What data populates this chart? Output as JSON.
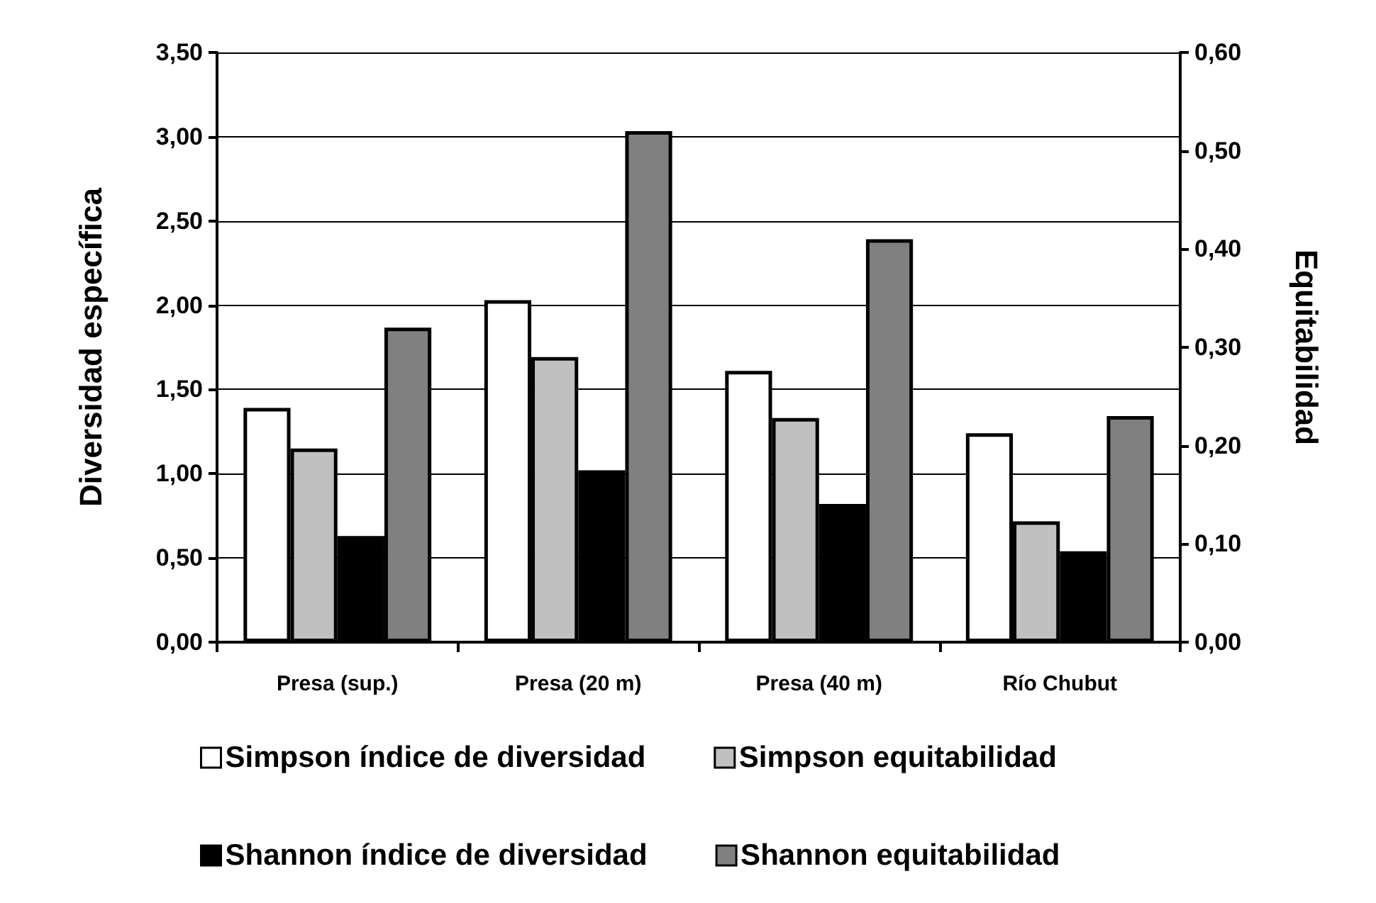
{
  "chart_data": {
    "type": "bar",
    "categories": [
      "Presa (sup.)",
      "Presa (20 m)",
      "Presa (40 m)",
      "Río Chubut"
    ],
    "ylabel": "Diversidad específica",
    "y2label": "Equitabilidad",
    "ylim": [
      0,
      3.5
    ],
    "yticks": [
      {
        "value": 0,
        "label": "0,00"
      },
      {
        "value": 0.5,
        "label": "0,50"
      },
      {
        "value": 1,
        "label": "1,00"
      },
      {
        "value": 1.5,
        "label": "1,50"
      },
      {
        "value": 2,
        "label": "2,00"
      },
      {
        "value": 2.5,
        "label": "2,50"
      },
      {
        "value": 3,
        "label": "3,00"
      },
      {
        "value": 3.5,
        "label": "3,50"
      }
    ],
    "y2lim": [
      0,
      0.6
    ],
    "y2ticks": [
      {
        "value": 0,
        "label": "0,00"
      },
      {
        "value": 0.1,
        "label": "0,10"
      },
      {
        "value": 0.2,
        "label": "0,20"
      },
      {
        "value": 0.3,
        "label": "0,30"
      },
      {
        "value": 0.4,
        "label": "0,40"
      },
      {
        "value": 0.5,
        "label": "0,50"
      },
      {
        "value": 0.6,
        "label": "0,60"
      }
    ],
    "series": [
      {
        "name": "Simpson índice de diversidad",
        "color": "#ffffff",
        "values": [
          1.39,
          2.03,
          1.61,
          1.24
        ]
      },
      {
        "name": "Simpson equitabilidad",
        "color": "#c0c0c0",
        "axis": "y2",
        "values": [
          0.197,
          0.29,
          0.228,
          0.123
        ]
      },
      {
        "name": "Shannon índice de diversidad",
        "color": "#000000",
        "values": [
          0.63,
          1.02,
          0.82,
          0.54
        ]
      },
      {
        "name": "Shannon equitabilidad",
        "color": "#808080",
        "axis": "y2",
        "values": [
          0.32,
          0.52,
          0.41,
          0.23
        ]
      }
    ],
    "grid": "y",
    "legend": "bottom"
  }
}
